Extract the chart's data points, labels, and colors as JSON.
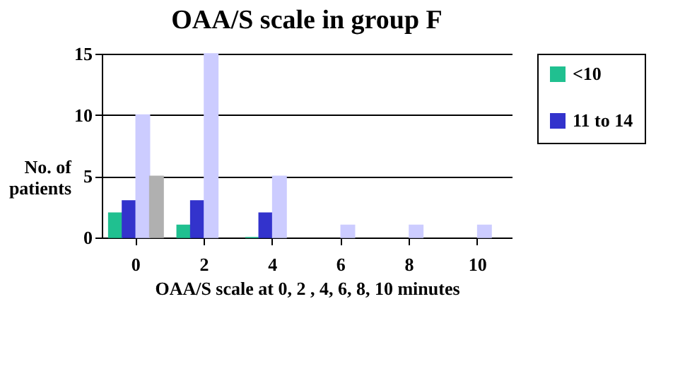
{
  "chart_data": {
    "type": "bar",
    "title": "OAA/S scale in group F",
    "xlabel": "OAA/S scale at 0, 2 , 4, 6, 8, 10 minutes",
    "ylabel": "No. of patients",
    "categories": [
      "0",
      "2",
      "4",
      "6",
      "8",
      "10"
    ],
    "series": [
      {
        "name": "<10",
        "color": "#20c090",
        "values": [
          2,
          1,
          0,
          null,
          null,
          null
        ]
      },
      {
        "name": "11 to 14",
        "color": "#3333cc",
        "values": [
          3,
          3,
          2,
          null,
          null,
          null
        ]
      },
      {
        "color": "#ccccff",
        "values": [
          10,
          15,
          5,
          1,
          1,
          1
        ]
      },
      {
        "color": "#b0b0b0",
        "values": [
          5,
          null,
          null,
          null,
          null,
          null
        ]
      }
    ],
    "ylim": [
      0,
      15
    ],
    "yticks": [
      0,
      5,
      10,
      15
    ],
    "grid": "y",
    "legend": "right"
  }
}
